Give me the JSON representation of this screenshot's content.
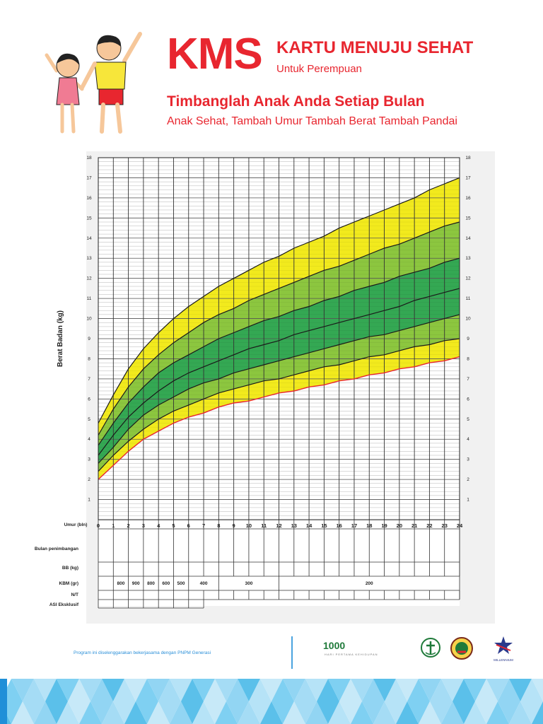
{
  "header": {
    "kms": "KMS",
    "card_title": "KARTU MENUJU SEHAT",
    "card_subtitle": "Untuk Perempuan",
    "slogan": "Timbanglah Anak Anda Setiap Bulan",
    "slogan_sub": "Anak Sehat, Tambah Umur Tambah Berat Tambah Pandai"
  },
  "chart_data": {
    "type": "line",
    "ylabel": "Berat Badan (kg)",
    "xlabel": "Umur (bln)",
    "ylim": [
      0,
      18
    ],
    "xlim": [
      0,
      24
    ],
    "y_ticks": [
      1,
      2,
      3,
      4,
      5,
      6,
      7,
      8,
      9,
      10,
      11,
      12,
      13,
      14,
      15,
      16,
      17,
      18
    ],
    "x_ticks": [
      0,
      1,
      2,
      3,
      4,
      5,
      6,
      7,
      8,
      9,
      10,
      11,
      12,
      13,
      14,
      15,
      16,
      17,
      18,
      19,
      20,
      21,
      22,
      23,
      24
    ],
    "grid": true,
    "x": [
      0,
      1,
      2,
      3,
      4,
      5,
      6,
      7,
      8,
      9,
      10,
      11,
      12,
      13,
      14,
      15,
      16,
      17,
      18,
      19,
      20,
      21,
      22,
      23,
      24
    ],
    "curves": {
      "minus3": [
        2.0,
        2.7,
        3.4,
        4.0,
        4.4,
        4.8,
        5.1,
        5.3,
        5.6,
        5.8,
        5.9,
        6.1,
        6.3,
        6.4,
        6.6,
        6.7,
        6.9,
        7.0,
        7.2,
        7.3,
        7.5,
        7.6,
        7.8,
        7.9,
        8.1
      ],
      "minus2": [
        2.4,
        3.2,
        3.9,
        4.5,
        5.0,
        5.4,
        5.7,
        6.0,
        6.3,
        6.5,
        6.7,
        6.9,
        7.0,
        7.2,
        7.4,
        7.6,
        7.7,
        7.9,
        8.1,
        8.2,
        8.4,
        8.6,
        8.7,
        8.9,
        9.0
      ],
      "minus1": [
        2.8,
        3.6,
        4.5,
        5.2,
        5.7,
        6.1,
        6.5,
        6.8,
        7.0,
        7.3,
        7.5,
        7.7,
        7.9,
        8.1,
        8.3,
        8.5,
        8.7,
        8.9,
        9.1,
        9.2,
        9.4,
        9.6,
        9.8,
        10.0,
        10.2
      ],
      "median": [
        3.2,
        4.2,
        5.1,
        5.8,
        6.4,
        6.9,
        7.3,
        7.6,
        7.9,
        8.2,
        8.5,
        8.7,
        8.9,
        9.2,
        9.4,
        9.6,
        9.8,
        10.0,
        10.2,
        10.4,
        10.6,
        10.9,
        11.1,
        11.3,
        11.5
      ],
      "plus1": [
        3.7,
        4.8,
        5.8,
        6.6,
        7.3,
        7.8,
        8.2,
        8.6,
        9.0,
        9.3,
        9.6,
        9.9,
        10.1,
        10.4,
        10.6,
        10.9,
        11.1,
        11.4,
        11.6,
        11.8,
        12.1,
        12.3,
        12.5,
        12.8,
        13.0
      ],
      "plus2": [
        4.2,
        5.5,
        6.6,
        7.5,
        8.2,
        8.8,
        9.3,
        9.8,
        10.2,
        10.5,
        10.9,
        11.2,
        11.5,
        11.8,
        12.1,
        12.4,
        12.6,
        12.9,
        13.2,
        13.5,
        13.7,
        14.0,
        14.3,
        14.6,
        14.8
      ],
      "plus3": [
        4.8,
        6.2,
        7.5,
        8.5,
        9.3,
        10.0,
        10.6,
        11.1,
        11.6,
        12.0,
        12.4,
        12.8,
        13.1,
        13.5,
        13.8,
        14.1,
        14.5,
        14.8,
        15.1,
        15.4,
        15.7,
        16.0,
        16.4,
        16.7,
        17.0
      ]
    },
    "colors": {
      "outer_band": "#f2ea1d",
      "middle_band": "#8cc63f",
      "inner_band": "#34a853",
      "lower_edge": "#e8262f",
      "curve_line": "#1a1a1a"
    }
  },
  "table": {
    "row_labels": [
      "Bulan penimbangan",
      "BB (kg)",
      "KBM (gr)",
      "N/T",
      "ASI Eksklusif"
    ],
    "kbm_values": [
      {
        "from": 1,
        "to": 2,
        "label": "800"
      },
      {
        "from": 2,
        "to": 3,
        "label": "900"
      },
      {
        "from": 3,
        "to": 4,
        "label": "800"
      },
      {
        "from": 4,
        "to": 5,
        "label": "600"
      },
      {
        "from": 5,
        "to": 6,
        "label": "500"
      },
      {
        "from": 6,
        "to": 8,
        "label": "400"
      },
      {
        "from": 8,
        "to": 12,
        "label": "300"
      },
      {
        "from": 12,
        "to": 25,
        "label": "200"
      }
    ]
  },
  "footer": {
    "note": "Program ini diselenggarakan bekerjasama dengan PNPM Generasi",
    "logo_1000": "1000",
    "logo_1000_sub": "HARI PERTAMA KEHIDUPAN",
    "logo_millennium": "MILLENNIUM"
  }
}
